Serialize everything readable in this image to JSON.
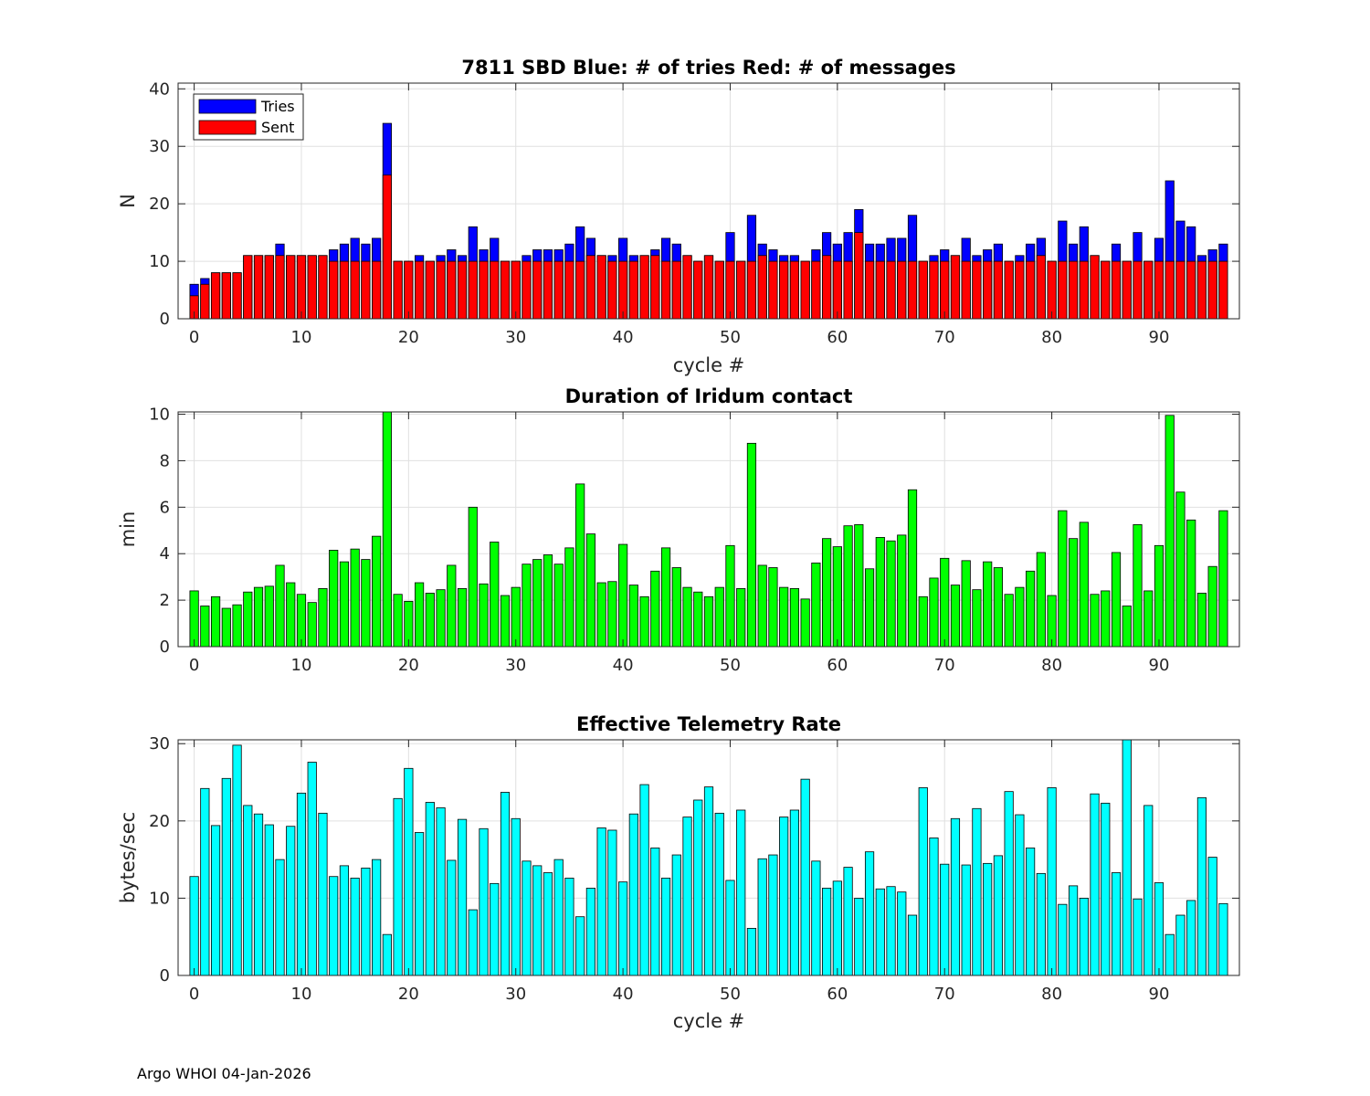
{
  "footer": "Argo WHOI 04-Jan-2026",
  "chart_data": [
    {
      "type": "bar",
      "stacked_overlay": true,
      "title": "7811 SBD  Blue: # of tries   Red: # of messages",
      "xlabel": "cycle #",
      "ylabel": "N",
      "xlim": [
        -1.5,
        97.5
      ],
      "ylim": [
        0,
        41
      ],
      "yticks": [
        0,
        10,
        20,
        30,
        40
      ],
      "xticks": [
        0,
        10,
        20,
        30,
        40,
        50,
        60,
        70,
        80,
        90
      ],
      "grid": true,
      "legend": {
        "placement": "top-left",
        "entries": [
          "Tries",
          "Sent"
        ]
      },
      "series": [
        {
          "name": "Tries",
          "color": "#0000ff",
          "values": [
            6,
            7,
            8,
            8,
            8,
            11,
            11,
            11,
            13,
            11,
            11,
            11,
            11,
            12,
            13,
            14,
            13,
            14,
            34,
            10,
            10,
            11,
            10,
            11,
            12,
            11,
            16,
            12,
            14,
            10,
            10,
            11,
            12,
            12,
            12,
            13,
            16,
            14,
            11,
            11,
            14,
            11,
            11,
            12,
            14,
            13,
            11,
            10,
            11,
            10,
            15,
            10,
            18,
            13,
            12,
            11,
            11,
            10,
            12,
            15,
            13,
            15,
            19,
            13,
            13,
            14,
            14,
            18,
            10,
            11,
            12,
            11,
            14,
            11,
            12,
            13,
            10,
            11,
            13,
            14,
            10,
            17,
            13,
            16,
            11,
            10,
            13,
            10,
            15,
            10,
            14,
            24,
            17,
            16,
            11,
            12,
            13
          ]
        },
        {
          "name": "Sent",
          "color": "#ff0000",
          "values": [
            4,
            6,
            8,
            8,
            8,
            11,
            11,
            11,
            11,
            11,
            11,
            11,
            11,
            10,
            10,
            10,
            10,
            10,
            25,
            10,
            10,
            10,
            10,
            10,
            10,
            10,
            10,
            10,
            10,
            10,
            10,
            10,
            10,
            10,
            10,
            10,
            10,
            11,
            11,
            10,
            10,
            10,
            11,
            11,
            10,
            10,
            11,
            10,
            11,
            10,
            10,
            10,
            10,
            11,
            10,
            10,
            10,
            10,
            10,
            11,
            10,
            10,
            15,
            10,
            10,
            10,
            10,
            10,
            10,
            10,
            10,
            11,
            10,
            10,
            10,
            10,
            10,
            10,
            10,
            11,
            10,
            10,
            10,
            10,
            11,
            10,
            10,
            10,
            10,
            10,
            10,
            10,
            10,
            10,
            10,
            10,
            10
          ]
        }
      ]
    },
    {
      "type": "bar",
      "title": "Duration of Iridum contact",
      "xlabel": "",
      "ylabel": "min",
      "xlim": [
        -1.5,
        97.5
      ],
      "ylim": [
        0,
        10.1
      ],
      "yticks": [
        0,
        2,
        4,
        6,
        8,
        10
      ],
      "xticks": [
        0,
        10,
        20,
        30,
        40,
        50,
        60,
        70,
        80,
        90
      ],
      "grid": true,
      "series": [
        {
          "name": "Duration",
          "color": "#00ff00",
          "values": [
            2.4,
            1.75,
            2.15,
            1.65,
            1.8,
            2.35,
            2.55,
            2.6,
            3.5,
            2.75,
            2.25,
            1.9,
            2.5,
            4.15,
            3.65,
            4.2,
            3.75,
            4.75,
            10.1,
            2.25,
            1.95,
            2.75,
            2.3,
            2.45,
            3.5,
            2.5,
            6.0,
            2.7,
            4.5,
            2.2,
            2.55,
            3.55,
            3.75,
            3.95,
            3.55,
            4.25,
            7.0,
            4.85,
            2.75,
            2.8,
            4.4,
            2.65,
            2.15,
            3.25,
            4.25,
            3.4,
            2.55,
            2.35,
            2.15,
            2.55,
            4.35,
            2.5,
            8.75,
            3.5,
            3.4,
            2.55,
            2.5,
            2.05,
            3.6,
            4.65,
            4.3,
            5.2,
            5.25,
            3.35,
            4.7,
            4.55,
            4.8,
            6.75,
            2.15,
            2.95,
            3.8,
            2.65,
            3.7,
            2.45,
            3.65,
            3.4,
            2.25,
            2.55,
            3.25,
            4.05,
            2.2,
            5.85,
            4.65,
            5.35,
            2.25,
            2.4,
            4.05,
            1.75,
            5.25,
            2.4,
            4.35,
            9.95,
            6.65,
            5.45,
            2.3,
            3.45,
            5.85
          ]
        }
      ]
    },
    {
      "type": "bar",
      "title": "Effective Telemetry Rate",
      "xlabel": "cycle #",
      "ylabel": "bytes/sec",
      "xlim": [
        -1.5,
        97.5
      ],
      "ylim": [
        0,
        30.5
      ],
      "yticks": [
        0,
        10,
        20,
        30
      ],
      "xticks": [
        0,
        10,
        20,
        30,
        40,
        50,
        60,
        70,
        80,
        90
      ],
      "grid": true,
      "series": [
        {
          "name": "Rate",
          "color": "#00ffff",
          "values": [
            12.8,
            24.2,
            19.4,
            25.5,
            29.8,
            22.0,
            20.9,
            19.5,
            15.0,
            19.3,
            23.6,
            27.6,
            21.0,
            12.8,
            14.2,
            12.6,
            13.9,
            15.0,
            5.3,
            22.9,
            26.8,
            18.5,
            22.4,
            21.7,
            14.9,
            20.2,
            8.5,
            19.0,
            11.9,
            23.7,
            20.3,
            14.8,
            14.2,
            13.3,
            15.0,
            12.6,
            7.6,
            11.3,
            19.1,
            18.8,
            12.1,
            20.9,
            24.7,
            16.5,
            12.6,
            15.6,
            20.5,
            22.7,
            24.4,
            21.0,
            12.3,
            21.4,
            6.1,
            15.1,
            15.6,
            20.5,
            21.4,
            25.4,
            14.8,
            11.3,
            12.2,
            14.0,
            10.0,
            16.0,
            11.2,
            11.5,
            10.8,
            7.8,
            24.3,
            17.8,
            14.4,
            20.3,
            14.3,
            21.6,
            14.5,
            15.5,
            23.8,
            20.8,
            16.5,
            13.2,
            24.3,
            9.2,
            11.6,
            10.0,
            23.5,
            22.3,
            13.3,
            30.5,
            9.9,
            22.0,
            12.0,
            5.3,
            7.8,
            9.7,
            23.0,
            15.3,
            9.3
          ]
        }
      ]
    }
  ]
}
